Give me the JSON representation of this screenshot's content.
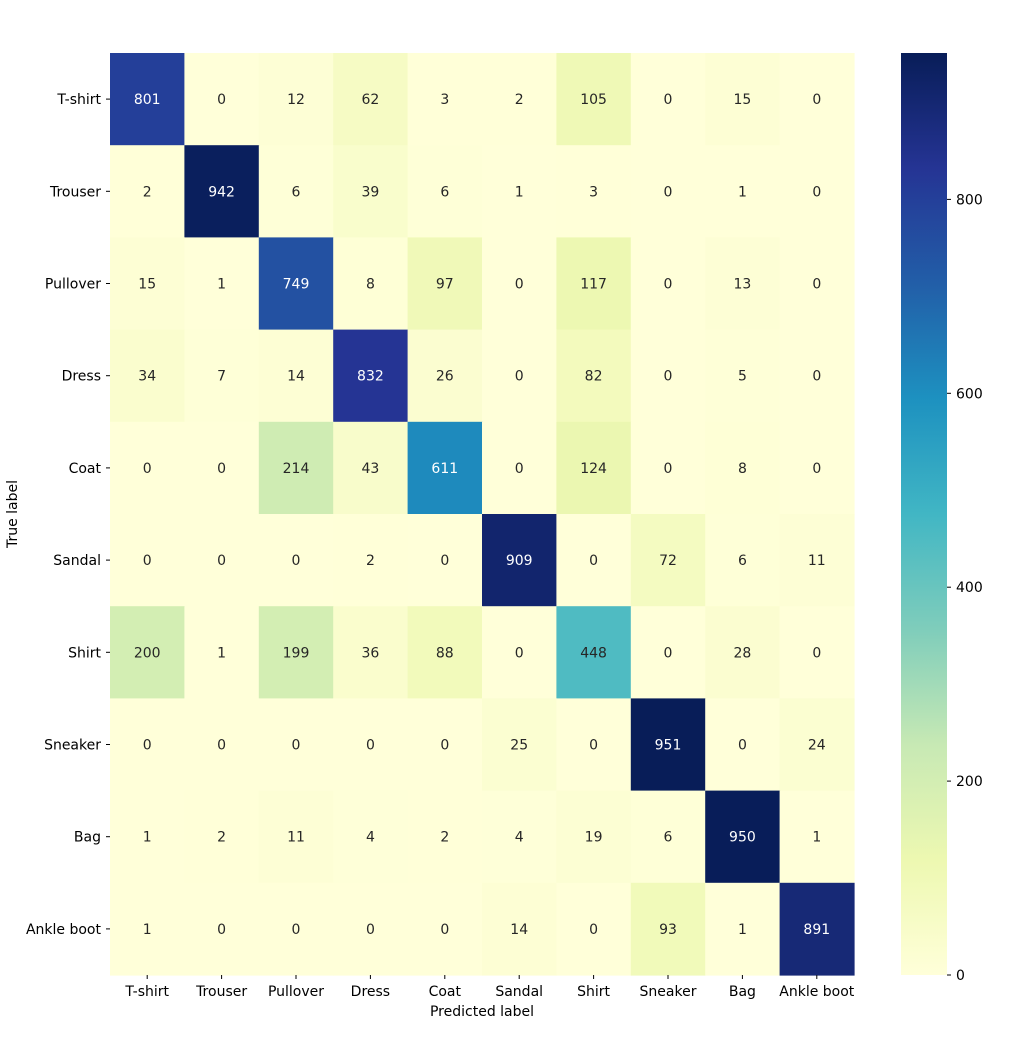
{
  "chart_data": {
    "type": "heatmap",
    "title": "",
    "xlabel": "Predicted label",
    "ylabel": "True label",
    "x_categories": [
      "T-shirt",
      "Trouser",
      "Pullover",
      "Dress",
      "Coat",
      "Sandal",
      "Shirt",
      "Sneaker",
      "Bag",
      "Ankle boot"
    ],
    "y_categories": [
      "T-shirt",
      "Trouser",
      "Pullover",
      "Dress",
      "Coat",
      "Sandal",
      "Shirt",
      "Sneaker",
      "Bag",
      "Ankle boot"
    ],
    "values": [
      [
        801,
        0,
        12,
        62,
        3,
        2,
        105,
        0,
        15,
        0
      ],
      [
        2,
        942,
        6,
        39,
        6,
        1,
        3,
        0,
        1,
        0
      ],
      [
        15,
        1,
        749,
        8,
        97,
        0,
        117,
        0,
        13,
        0
      ],
      [
        34,
        7,
        14,
        832,
        26,
        0,
        82,
        0,
        5,
        0
      ],
      [
        0,
        0,
        214,
        43,
        611,
        0,
        124,
        0,
        8,
        0
      ],
      [
        0,
        0,
        0,
        2,
        0,
        909,
        0,
        72,
        6,
        11
      ],
      [
        200,
        1,
        199,
        36,
        88,
        0,
        448,
        0,
        28,
        0
      ],
      [
        0,
        0,
        0,
        0,
        0,
        25,
        0,
        951,
        0,
        24
      ],
      [
        1,
        2,
        11,
        4,
        2,
        4,
        19,
        6,
        950,
        1
      ],
      [
        1,
        0,
        0,
        0,
        0,
        14,
        0,
        93,
        1,
        891
      ]
    ],
    "colormap": "YlGnBu",
    "colorbar": {
      "range": [
        0,
        951
      ],
      "ticks": [
        0,
        200,
        400,
        600,
        800
      ],
      "tick_labels": [
        "0",
        "200",
        "400",
        "600",
        "800"
      ]
    },
    "grid": false,
    "legend": "colorbar-right"
  }
}
